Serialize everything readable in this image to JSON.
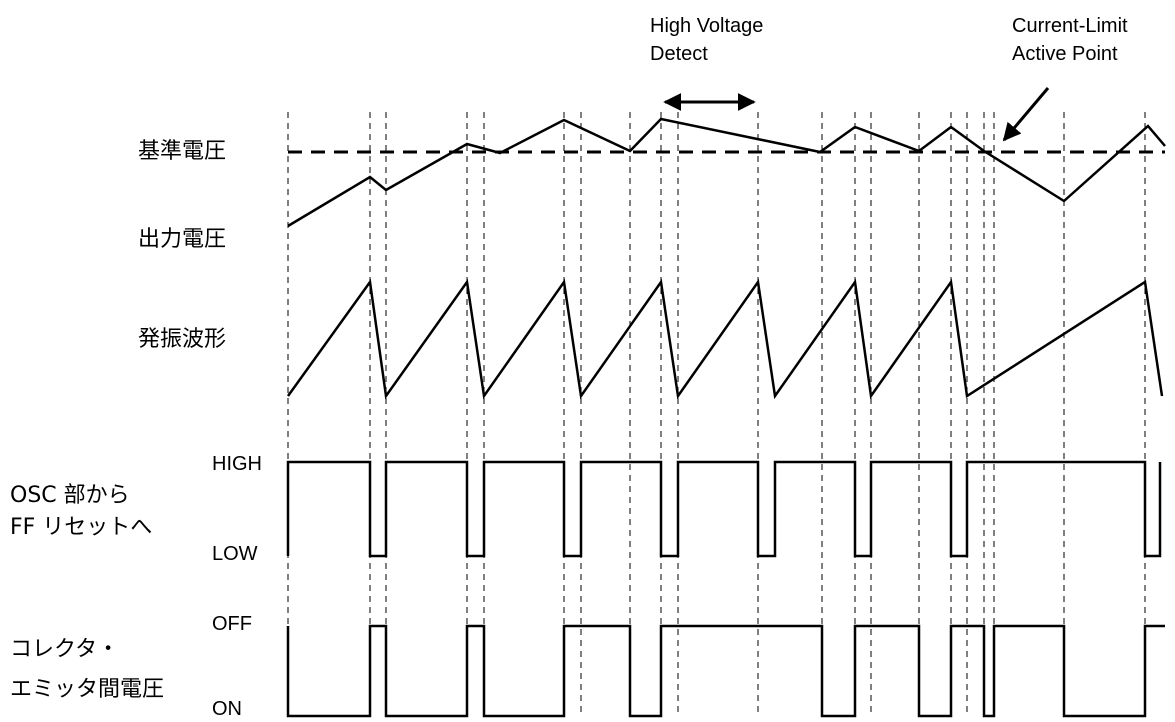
{
  "annotations": {
    "high_voltage_line1": "High Voltage",
    "high_voltage_line2": "Detect",
    "current_limit_line1": "Current-Limit",
    "current_limit_line2": "Active Point"
  },
  "signals": {
    "reference_voltage": "基準電圧",
    "output_voltage": "出力電圧",
    "oscillation_waveform": "発振波形",
    "osc_to_ff_line1": "OSC 部から",
    "osc_to_ff_line2": "FF リセットへ",
    "collector_emitter_line1": "コレクタ・",
    "collector_emitter_line2": "エミッタ間電圧"
  },
  "levels": {
    "osc_high": "HIGH",
    "osc_low": "LOW",
    "ce_off": "OFF",
    "ce_on": "ON"
  },
  "colors": {
    "stroke": "#000000",
    "background": "#ffffff"
  }
}
